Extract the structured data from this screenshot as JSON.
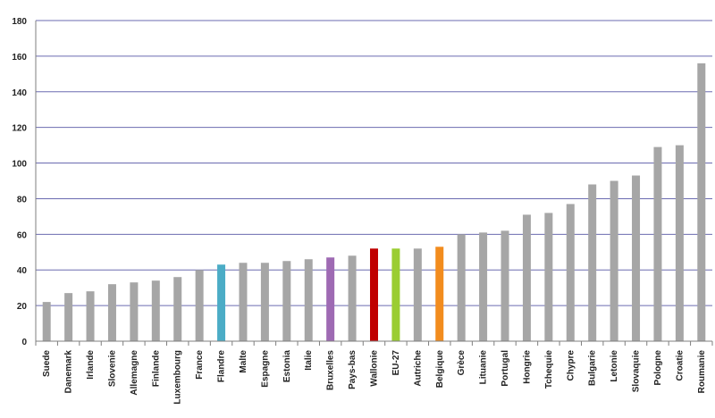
{
  "chart_data": {
    "type": "bar",
    "title": "",
    "xlabel": "",
    "ylabel": "",
    "ylim": [
      0,
      180
    ],
    "yticks": [
      0,
      20,
      40,
      60,
      80,
      100,
      120,
      140,
      160,
      180
    ],
    "grid": true,
    "categories": [
      "Suede",
      "Danemark",
      "Irlande",
      "Slovenie",
      "Allemagne",
      "Finlande",
      "Luxembourg",
      "France",
      "Flandre",
      "Malte",
      "Espagne",
      "Estonia",
      "Italie",
      "Bruxelles",
      "Pays-bas",
      "Wallonie",
      "EU-27",
      "Autriche",
      "Belgique",
      "Grèce",
      "Lituanie",
      "Portugal",
      "Hongrie",
      "Tchequie",
      "Chypre",
      "Bulgarie",
      "Letonie",
      "Slovaquie",
      "Pologne",
      "Croatie",
      "Roumanie"
    ],
    "values": [
      22,
      27,
      28,
      32,
      33,
      34,
      36,
      40,
      43,
      44,
      44,
      45,
      46,
      47,
      48,
      52,
      52,
      52,
      53,
      60,
      61,
      62,
      71,
      72,
      77,
      88,
      90,
      93,
      109,
      110,
      156
    ],
    "colors": {
      "default": "#a6a6a6",
      "Flandre": "#4bacc6",
      "Bruxelles": "#9e6ab3",
      "Wallonie": "#c00000",
      "EU-27": "#9acd32",
      "Belgique": "#f28c1e"
    },
    "gridline_color": "#6b6bb0",
    "axis_color": "#7f7f7f"
  }
}
